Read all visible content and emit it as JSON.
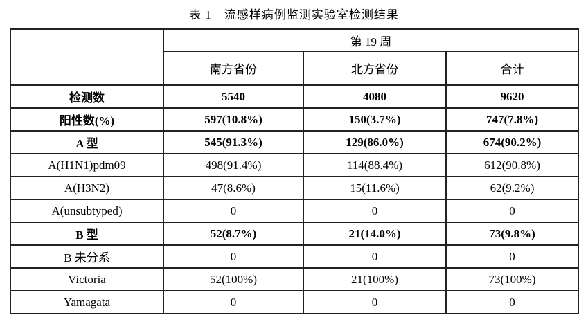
{
  "caption": "表 1　流感样病例监测实验室检测结果",
  "table": {
    "week_header": "第 19 周",
    "columns": [
      "南方省份",
      "北方省份",
      "合计"
    ],
    "rows": [
      {
        "label": "检测数",
        "values": [
          "5540",
          "4080",
          "9620"
        ],
        "bold": true
      },
      {
        "label": "阳性数(%)",
        "values": [
          "597(10.8%)",
          "150(3.7%)",
          "747(7.8%)"
        ],
        "bold": true
      },
      {
        "label": "A 型",
        "values": [
          "545(91.3%)",
          "129(86.0%)",
          "674(90.2%)"
        ],
        "bold": true
      },
      {
        "label": "A(H1N1)pdm09",
        "values": [
          "498(91.4%)",
          "114(88.4%)",
          "612(90.8%)"
        ],
        "bold": false
      },
      {
        "label": "A(H3N2)",
        "values": [
          "47(8.6%)",
          "15(11.6%)",
          "62(9.2%)"
        ],
        "bold": false
      },
      {
        "label": "A(unsubtyped)",
        "values": [
          "0",
          "0",
          "0"
        ],
        "bold": false
      },
      {
        "label": "B 型",
        "values": [
          "52(8.7%)",
          "21(14.0%)",
          "73(9.8%)"
        ],
        "bold": true
      },
      {
        "label": "B 未分系",
        "values": [
          "0",
          "0",
          "0"
        ],
        "bold": false
      },
      {
        "label": "Victoria",
        "values": [
          "52(100%)",
          "21(100%)",
          "73(100%)"
        ],
        "bold": false
      },
      {
        "label": "Yamagata",
        "values": [
          "0",
          "0",
          "0"
        ],
        "bold": false
      }
    ],
    "text_color": "#000000",
    "border_color": "#222222",
    "background_color": "#ffffff"
  }
}
